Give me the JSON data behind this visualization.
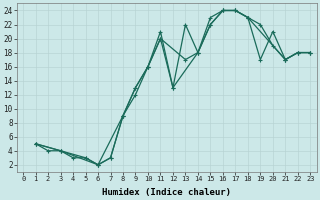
{
  "xlabel": "Humidex (Indice chaleur)",
  "bg_color": "#cce8e8",
  "line_color": "#1a6b5a",
  "xlim": [
    -0.5,
    23.5
  ],
  "ylim": [
    1,
    25
  ],
  "xticks": [
    0,
    1,
    2,
    3,
    4,
    5,
    6,
    7,
    8,
    9,
    10,
    11,
    12,
    13,
    14,
    15,
    16,
    17,
    18,
    19,
    20,
    21,
    22,
    23
  ],
  "yticks": [
    2,
    4,
    6,
    8,
    10,
    12,
    14,
    16,
    18,
    20,
    22,
    24
  ],
  "curve1_x": [
    1,
    2,
    3,
    4,
    5,
    6,
    7,
    8,
    9,
    10,
    11,
    12,
    13,
    14,
    15,
    16,
    17,
    18,
    19,
    20,
    21,
    22,
    23
  ],
  "curve1_y": [
    5,
    4,
    4,
    3,
    3,
    2,
    3,
    9,
    13,
    16,
    20,
    13,
    22,
    18,
    22,
    24,
    24,
    23,
    17,
    21,
    17,
    18,
    18
  ],
  "curve2_x": [
    1,
    3,
    5,
    6,
    7,
    8,
    9,
    10,
    11,
    12,
    14,
    15,
    16,
    17,
    18,
    19,
    20,
    21,
    22,
    23
  ],
  "curve2_y": [
    5,
    4,
    3,
    2,
    3,
    9,
    13,
    16,
    21,
    13,
    18,
    22,
    24,
    24,
    23,
    22,
    19,
    17,
    18,
    18
  ],
  "curve3_x": [
    1,
    3,
    6,
    8,
    9,
    10,
    11,
    13,
    14,
    15,
    16,
    17,
    18,
    21,
    22,
    23
  ],
  "curve3_y": [
    5,
    4,
    2,
    9,
    12,
    16,
    20,
    17,
    18,
    23,
    24,
    24,
    23,
    17,
    18,
    18
  ]
}
